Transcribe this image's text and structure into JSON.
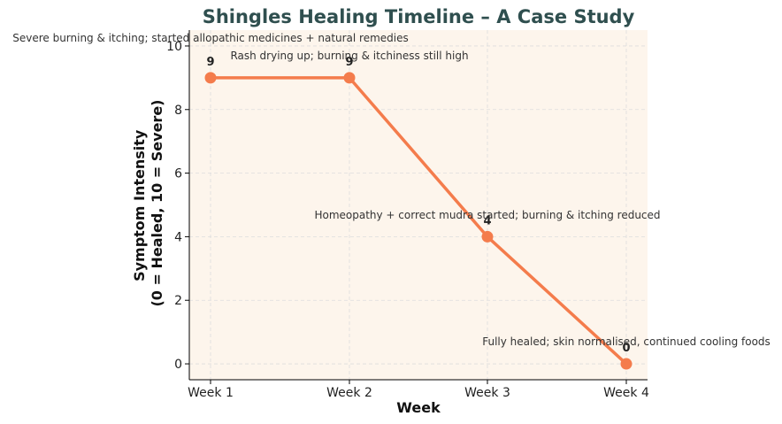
{
  "chart_data": {
    "type": "line",
    "title": "Shingles Healing Timeline – A Case Study",
    "xlabel": "Week",
    "ylabel_lines": [
      "Symptom Intensity",
      "(0 = Healed, 10 = Severe)"
    ],
    "categories": [
      "Week 1",
      "Week 2",
      "Week 3",
      "Week 4"
    ],
    "values": [
      9,
      9,
      4,
      0
    ],
    "ylim": [
      -0.5,
      10.5
    ],
    "yticks": [
      0,
      2,
      4,
      6,
      8,
      10
    ],
    "grid": true,
    "annotations": [
      {
        "category": "Week 1",
        "text": "Severe burning & itching; started allopathic medicines + natural remedies"
      },
      {
        "category": "Week 2",
        "text": "Rash drying up; burning & itchiness still high"
      },
      {
        "category": "Week 3",
        "text": "Homeopathy + correct mudra started; burning & itching reduced"
      },
      {
        "category": "Week 4",
        "text": "Fully healed; skin normalised, continued cooling foods"
      }
    ],
    "colors": {
      "line": "#f47c4c",
      "plot_background": "#fdf5ec",
      "grid": "#dddddd",
      "title": "#2f4f4f"
    }
  }
}
